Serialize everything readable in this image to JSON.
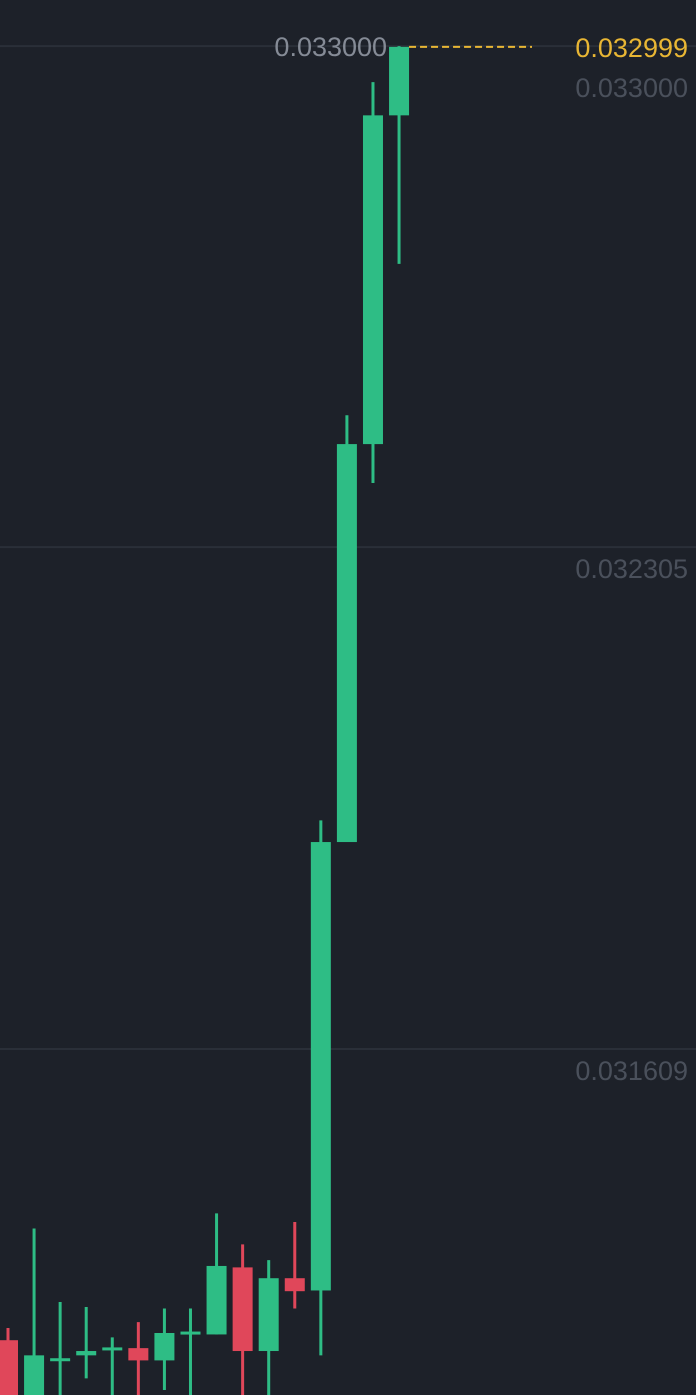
{
  "chart_data": {
    "type": "candlestick",
    "ylim": [
      0.031129,
      0.033064
    ],
    "grid": true,
    "y_ticks": [
      "0.033000",
      "0.032305",
      "0.031609"
    ],
    "max_high_label": "0.033000",
    "last_price_label": "0.032999",
    "last_price": 0.032999,
    "colors": {
      "up": "#2ebd85",
      "down": "#e0475a",
      "last_price": "#e8b634",
      "background": "#1d2129",
      "grid": "#2a2f38",
      "tick": "#4a505b",
      "max_label": "#858b96"
    },
    "candles": [
      {
        "open": 0.031205,
        "close": 0.031122,
        "high": 0.031222,
        "low": 0.031115
      },
      {
        "open": 0.031129,
        "close": 0.031184,
        "high": 0.03136,
        "low": 0.03112
      },
      {
        "open": 0.031176,
        "close": 0.03118,
        "high": 0.031258,
        "low": 0.03112
      },
      {
        "open": 0.031184,
        "close": 0.03119,
        "high": 0.031251,
        "low": 0.031152
      },
      {
        "open": 0.031191,
        "close": 0.031195,
        "high": 0.031209,
        "low": 0.03112
      },
      {
        "open": 0.031194,
        "close": 0.031177,
        "high": 0.03123,
        "low": 0.03112
      },
      {
        "open": 0.031177,
        "close": 0.031215,
        "high": 0.031249,
        "low": 0.031136
      },
      {
        "open": 0.031213,
        "close": 0.031217,
        "high": 0.031249,
        "low": 0.03112
      },
      {
        "open": 0.031213,
        "close": 0.031308,
        "high": 0.031381,
        "low": 0.031213
      },
      {
        "open": 0.031306,
        "close": 0.03119,
        "high": 0.031338,
        "low": 0.03112
      },
      {
        "open": 0.03119,
        "close": 0.031291,
        "high": 0.031316,
        "low": 0.03112
      },
      {
        "open": 0.031291,
        "close": 0.031273,
        "high": 0.031369,
        "low": 0.031249
      },
      {
        "open": 0.031274,
        "close": 0.031896,
        "high": 0.031926,
        "low": 0.031184
      },
      {
        "open": 0.031896,
        "close": 0.032448,
        "high": 0.032488,
        "low": 0.031896
      },
      {
        "open": 0.032448,
        "close": 0.032904,
        "high": 0.03295,
        "low": 0.032394
      },
      {
        "open": 0.032904,
        "close": 0.032999,
        "high": 0.033,
        "low": 0.032698
      }
    ]
  }
}
